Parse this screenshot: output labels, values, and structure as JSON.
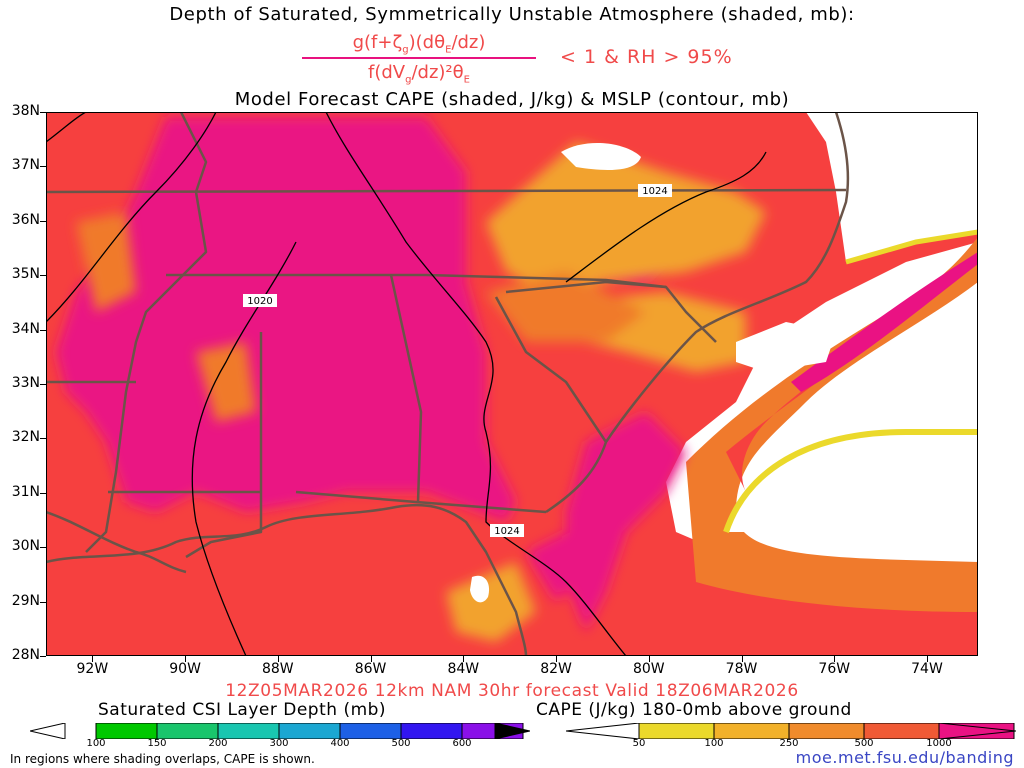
{
  "titles": {
    "line1": "Depth of Saturated, Symmetrically Unstable Atmosphere (shaded, mb):",
    "formula_numerator": "g(f+ζg)(dθE/dz)",
    "formula_denominator": "f(dVg/dz)²θE",
    "condition": "< 1 & RH > 95%",
    "line3": "Model Forecast CAPE (shaded, J/kg) & MSLP (contour, mb)"
  },
  "map": {
    "lat_labels": [
      "38N",
      "37N",
      "36N",
      "35N",
      "34N",
      "33N",
      "32N",
      "31N",
      "30N",
      "29N",
      "28N"
    ],
    "lon_labels": [
      "92W",
      "90W",
      "88W",
      "86W",
      "84W",
      "82W",
      "80W",
      "78W",
      "76W",
      "74W"
    ],
    "isobar_labels": [
      "1024",
      "1020",
      "1024"
    ],
    "colors": {
      "cape_high": "#ea1283",
      "cape_mid": "#f6403f",
      "cape_low": "#f07a2c",
      "cape_lower": "#f2a22e",
      "cape_min": "#e8d52a",
      "borders": "#6b5448",
      "isobars": "#000000"
    }
  },
  "forecast_line": "12Z05MAR2026 12km NAM 30hr forecast Valid 18Z06MAR2026",
  "colorbars": {
    "left": {
      "title": "Saturated CSI Layer Depth (mb)",
      "ticks": [
        "100",
        "150",
        "200",
        "300",
        "400",
        "500",
        "600"
      ],
      "colors": [
        "#00c800",
        "#19c56c",
        "#19c6b0",
        "#1ba7d2",
        "#1d60e6",
        "#3216f0",
        "#8a10e8"
      ]
    },
    "right": {
      "title": "CAPE (J/kg) 180-0mb above ground",
      "ticks": [
        "50",
        "100",
        "250",
        "500",
        "1000"
      ],
      "colors": [
        "#ebd92b",
        "#f2b12a",
        "#f08b2c",
        "#f05a35",
        "#ea1283"
      ]
    }
  },
  "footer_note": "In regions where shading overlaps, CAPE is shown.",
  "credit": "moe.met.fsu.edu/banding"
}
